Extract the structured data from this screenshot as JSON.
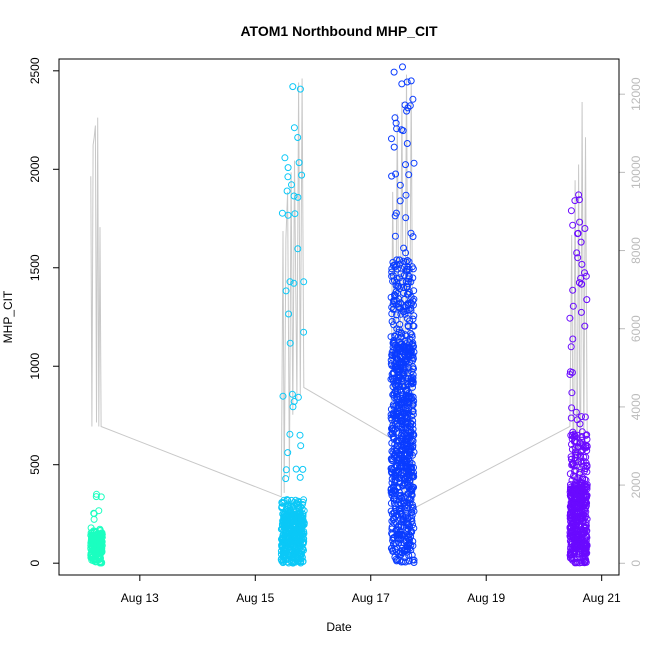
{
  "chart_data": {
    "type": "scatter",
    "title": "ATOM1 Northbound MHP_CIT",
    "xlabel": "Date",
    "ylabel": "MHP_CIT",
    "x_ticks": [
      {
        "label": "Aug 13",
        "day": 13
      },
      {
        "label": "Aug 15",
        "day": 15
      },
      {
        "label": "Aug 17",
        "day": 17
      },
      {
        "label": "Aug 19",
        "day": 19
      },
      {
        "label": "Aug 21",
        "day": 21
      }
    ],
    "xlim_days": [
      11.6,
      21.3
    ],
    "y_ticks": [
      0,
      500,
      1000,
      1500,
      2000,
      2500
    ],
    "ylim": [
      -60,
      2560
    ],
    "y2_ticks": [
      0,
      2000,
      4000,
      6000,
      8000,
      10000,
      12000
    ],
    "y2lim": [
      -300,
      12900
    ],
    "grid": false,
    "clusters": [
      {
        "day_start": 12.15,
        "day_end": 12.35,
        "color": "#1BFFC0",
        "median": 90,
        "spread": 55,
        "max": 350,
        "count": 220
      },
      {
        "day_start": 15.45,
        "day_end": 15.85,
        "color": "#0BC8F7",
        "median": 160,
        "spread": 120,
        "max": 2420,
        "count": 420
      },
      {
        "day_start": 17.35,
        "day_end": 17.75,
        "color": "#0A3CFF",
        "median": 700,
        "spread": 600,
        "max": 2520,
        "count": 900
      },
      {
        "day_start": 20.45,
        "day_end": 20.75,
        "color": "#6A0AFF",
        "median": 250,
        "spread": 300,
        "max": 1870,
        "count": 520
      }
    ],
    "secondary_series": {
      "color": "#c8c8c8",
      "points": [
        [
          12.15,
          9900
        ],
        [
          12.17,
          3500
        ],
        [
          12.19,
          10700
        ],
        [
          12.21,
          10900
        ],
        [
          12.23,
          11200
        ],
        [
          12.25,
          3600
        ],
        [
          12.27,
          11400
        ],
        [
          12.29,
          3500
        ],
        [
          12.31,
          8600
        ],
        [
          12.33,
          3500
        ],
        [
          15.45,
          1700
        ],
        [
          15.48,
          8500
        ],
        [
          15.5,
          1800
        ],
        [
          15.53,
          8300
        ],
        [
          15.56,
          9500
        ],
        [
          15.59,
          2200
        ],
        [
          15.62,
          10000
        ],
        [
          15.65,
          3800
        ],
        [
          15.68,
          10300
        ],
        [
          15.72,
          4200
        ],
        [
          15.75,
          12300
        ],
        [
          15.78,
          4300
        ],
        [
          15.81,
          12400
        ],
        [
          15.84,
          4500
        ],
        [
          17.35,
          3200
        ],
        [
          17.38,
          9500
        ],
        [
          17.42,
          3000
        ],
        [
          17.46,
          11500
        ],
        [
          17.5,
          2800
        ],
        [
          17.54,
          11800
        ],
        [
          17.58,
          1500
        ],
        [
          17.62,
          12500
        ],
        [
          17.66,
          1400
        ],
        [
          17.7,
          12300
        ],
        [
          17.74,
          1400
        ],
        [
          20.45,
          3500
        ],
        [
          20.48,
          8400
        ],
        [
          20.51,
          1500
        ],
        [
          20.54,
          9800
        ],
        [
          20.57,
          800
        ],
        [
          20.6,
          10200
        ],
        [
          20.63,
          1200
        ],
        [
          20.66,
          11800
        ],
        [
          20.69,
          3000
        ],
        [
          20.72,
          10900
        ],
        [
          20.75,
          3200
        ]
      ]
    }
  }
}
